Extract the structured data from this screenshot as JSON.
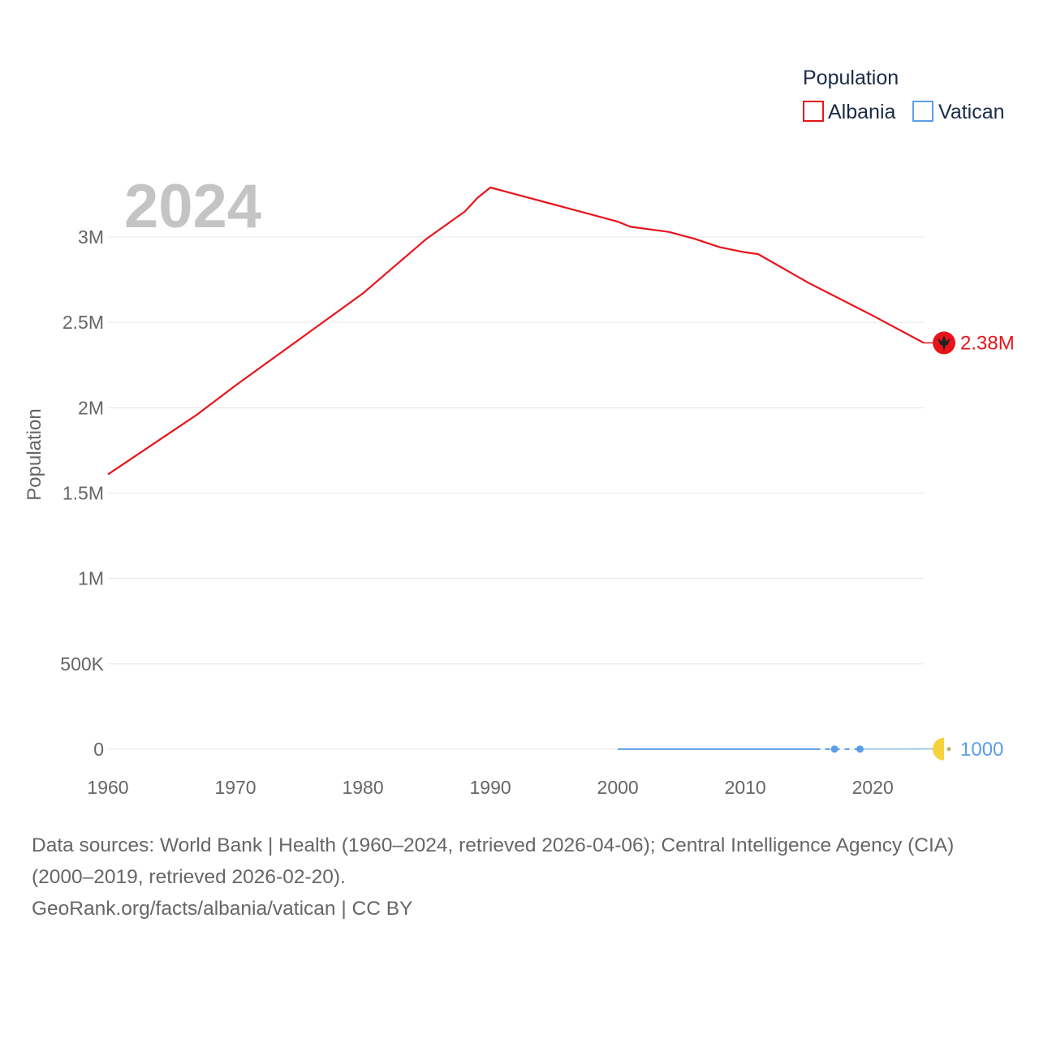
{
  "chart_data": {
    "type": "line",
    "year_watermark": "2024",
    "ylabel": "Population",
    "xlim": [
      1960,
      2025
    ],
    "ylim": [
      0,
      3300000
    ],
    "x_ticks": [
      1960,
      1970,
      1980,
      1990,
      2000,
      2010,
      2020
    ],
    "x_tick_labels": [
      "1960",
      "1970",
      "1980",
      "1990",
      "2000",
      "2010",
      "2020"
    ],
    "y_ticks": [
      0,
      500000,
      1000000,
      1500000,
      2000000,
      2500000,
      3000000
    ],
    "y_tick_labels": [
      "0",
      "500K",
      "1M",
      "1.5M",
      "2M",
      "2.5M",
      "3M"
    ],
    "grid": true,
    "legend": {
      "title": "Population",
      "placement": "top-right"
    },
    "series": [
      {
        "name": "Albania",
        "color": "#e8141b",
        "end_label": "2.38M",
        "icon": "albania-flag-icon",
        "x": [
          1960,
          1967,
          1970,
          1980,
          1985,
          1988,
          1989,
          1990,
          1995,
          2000,
          2001,
          2004,
          2006,
          2008,
          2010,
          2011,
          2015,
          2020,
          2024
        ],
        "values": [
          1610000,
          1960000,
          2130000,
          2670000,
          2990000,
          3150000,
          3230000,
          3290000,
          3190000,
          3090000,
          3060000,
          3030000,
          2990000,
          2940000,
          2910000,
          2900000,
          2730000,
          2540000,
          2380000
        ]
      },
      {
        "name": "Vatican",
        "color": "#5b9ee8",
        "end_label": "1000",
        "icon": "vatican-flag-icon",
        "x": [
          2000,
          2015.5,
          2017,
          2019,
          2024
        ],
        "values": [
          890,
          840,
          840,
          840,
          1000
        ],
        "markers": [
          2017,
          2019
        ]
      }
    ]
  },
  "source": {
    "line1": "Data sources: World Bank | Health (1960–2024, retrieved 2026-04-06); Central Intelligence Agency (CIA)",
    "line2": "(2000–2019, retrieved 2026-02-20).",
    "line3": "GeoRank.org/facts/albania/vatican | CC BY"
  }
}
